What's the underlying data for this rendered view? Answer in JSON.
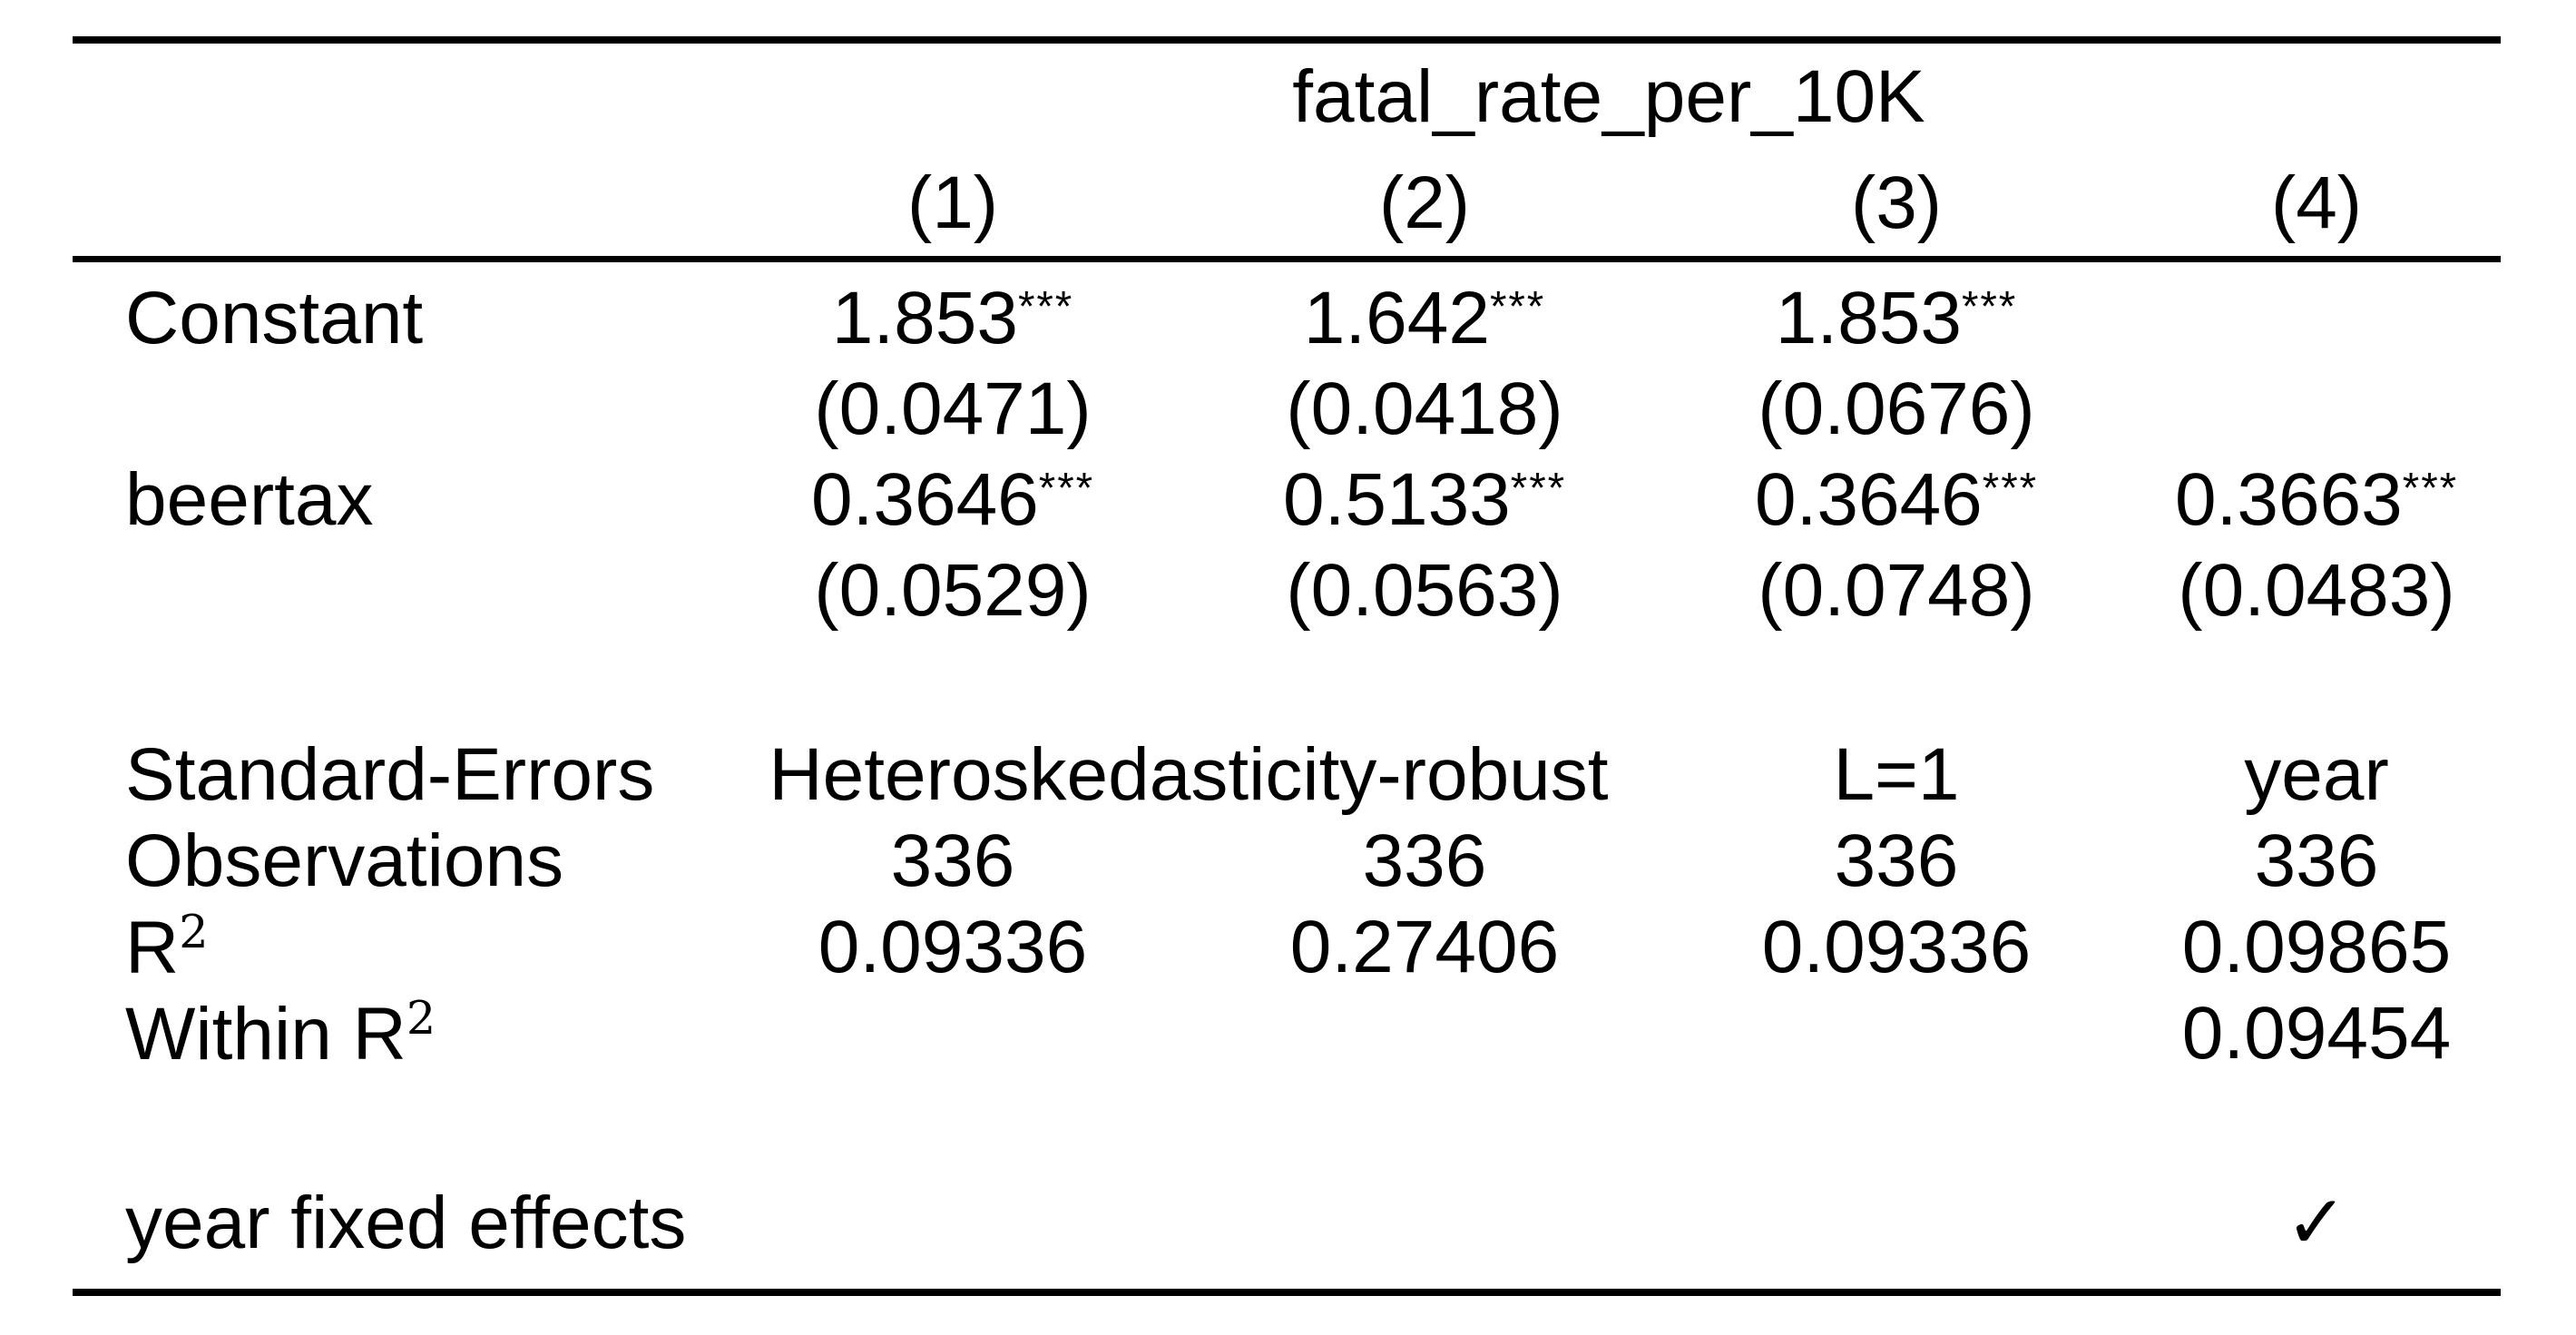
{
  "table": {
    "dep_var": "fatal_rate_per_10K",
    "models": [
      "(1)",
      "(2)",
      "(3)",
      "(4)"
    ],
    "coefficients": [
      {
        "label": "Constant",
        "estimates": [
          "1.853",
          "1.642",
          "1.853",
          ""
        ],
        "stars": [
          "***",
          "***",
          "***",
          ""
        ],
        "std_errors": [
          "(0.0471)",
          "(0.0418)",
          "(0.0676)",
          ""
        ]
      },
      {
        "label": "beertax",
        "estimates": [
          "0.3646",
          "0.5133",
          "0.3646",
          "0.3663"
        ],
        "stars": [
          "***",
          "***",
          "***",
          "***"
        ],
        "std_errors": [
          "(0.0529)",
          "(0.0563)",
          "(0.0748)",
          "(0.0483)"
        ]
      }
    ],
    "stats": {
      "se_type": {
        "label": "Standard-Errors",
        "cols_1_2": "Heteroskedasticity-robust",
        "col_3": "L=1",
        "col_4": "year"
      },
      "observations": {
        "label": "Observations",
        "values": [
          "336",
          "336",
          "336",
          "336"
        ]
      },
      "r2": {
        "label_base": "R",
        "label_sup": "2",
        "values": [
          "0.09336",
          "0.27406",
          "0.09336",
          "0.09865"
        ]
      },
      "within_r2": {
        "label_base": "Within R",
        "label_sup": "2",
        "values": [
          "",
          "",
          "",
          "0.09454"
        ]
      }
    },
    "fixed_effects": {
      "label": "year fixed effects",
      "check": "✓"
    }
  }
}
